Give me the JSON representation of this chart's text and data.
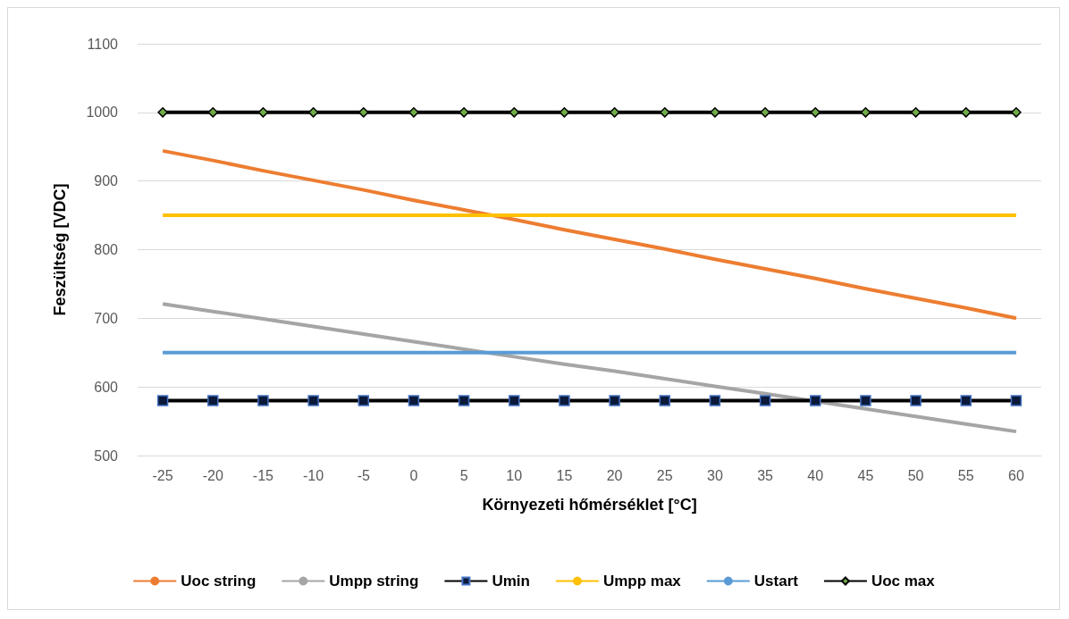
{
  "chart_data": {
    "type": "line",
    "xlabel": "Környezeti hőmérséklet [°C]",
    "ylabel": "Feszültség [VDC]",
    "categories": [
      "-25",
      "-20",
      "-15",
      "-10",
      "-5",
      "0",
      "5",
      "10",
      "15",
      "20",
      "25",
      "30",
      "35",
      "40",
      "45",
      "50",
      "55",
      "60"
    ],
    "ylim": [
      500,
      1100
    ],
    "yticks": [
      500,
      600,
      700,
      800,
      900,
      1000,
      1100
    ],
    "grid": "y",
    "legend": "bottom",
    "marker": "none",
    "line_style": "solid",
    "series": [
      {
        "name": "Uoc string",
        "color": "#ed7d31",
        "values": [
          944,
          930,
          915,
          901,
          887,
          872,
          858,
          844,
          829,
          815,
          801,
          786,
          772,
          758,
          743,
          729,
          715,
          700
        ]
      },
      {
        "name": "Umpp string",
        "color": "#a5a5a5",
        "values": [
          721,
          710,
          699,
          688,
          677,
          666,
          655,
          644,
          633,
          623,
          612,
          601,
          590,
          579,
          568,
          557,
          546,
          535
        ]
      },
      {
        "name": "Umin",
        "color": "#000000",
        "marker": "square",
        "values": [
          580,
          580,
          580,
          580,
          580,
          580,
          580,
          580,
          580,
          580,
          580,
          580,
          580,
          580,
          580,
          580,
          580,
          580
        ]
      },
      {
        "name": "Umpp max",
        "color": "#ffc000",
        "values": [
          850,
          850,
          850,
          850,
          850,
          850,
          850,
          850,
          850,
          850,
          850,
          850,
          850,
          850,
          850,
          850,
          850,
          850
        ]
      },
      {
        "name": "Ustart",
        "color": "#5b9bd5",
        "values": [
          650,
          650,
          650,
          650,
          650,
          650,
          650,
          650,
          650,
          650,
          650,
          650,
          650,
          650,
          650,
          650,
          650,
          650
        ]
      },
      {
        "name": "Uoc max",
        "color": "#000000",
        "marker": "diamond",
        "values": [
          1000,
          1000,
          1000,
          1000,
          1000,
          1000,
          1000,
          1000,
          1000,
          1000,
          1000,
          1000,
          1000,
          1000,
          1000,
          1000,
          1000,
          1000
        ]
      }
    ]
  }
}
